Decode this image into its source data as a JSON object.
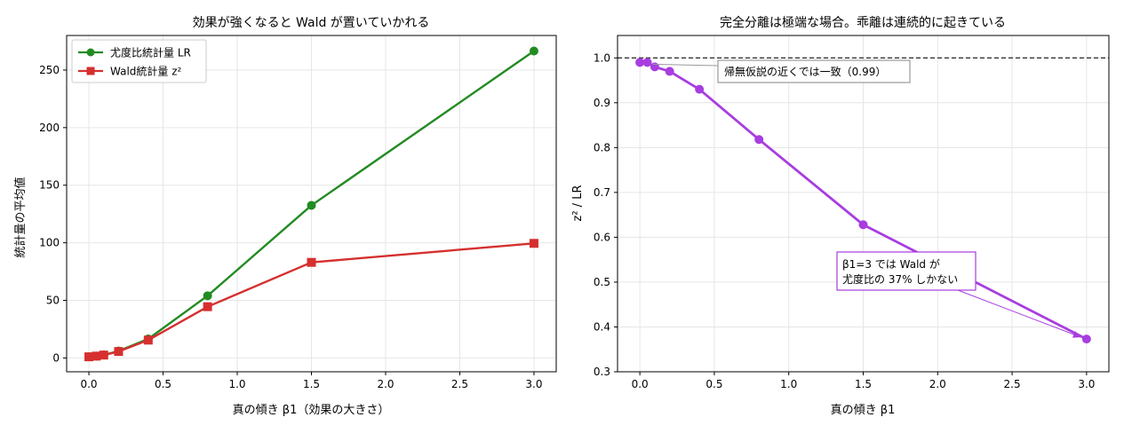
{
  "chart_data": [
    {
      "type": "line",
      "title": "効果が強くなると Wald が置いていかれる",
      "xlabel": "真の傾き β1（効果の大きさ）",
      "ylabel": "統計量の平均値",
      "xlim": [
        -0.15,
        3.15
      ],
      "ylim": [
        -12,
        280
      ],
      "xticks": [
        0.0,
        0.5,
        1.0,
        1.5,
        2.0,
        2.5,
        3.0
      ],
      "xtick_labels": [
        "0.0",
        "0.5",
        "1.0",
        "1.5",
        "2.0",
        "2.5",
        "3.0"
      ],
      "yticks": [
        0,
        50,
        100,
        150,
        200,
        250
      ],
      "ytick_labels": [
        "0",
        "50",
        "100",
        "150",
        "200",
        "250"
      ],
      "grid": true,
      "legend": "top-left",
      "series": [
        {
          "name": "尤度比統計量 LR",
          "color": "#228b22",
          "marker": "circle",
          "x": [
            0.0,
            0.05,
            0.1,
            0.2,
            0.4,
            0.8,
            1.5,
            3.0
          ],
          "y": [
            1.0,
            1.6,
            2.6,
            6.0,
            16.5,
            54,
            132.5,
            266.5
          ]
        },
        {
          "name": "Wald統計量 z²",
          "color": "#d62f2f",
          "marker": "square",
          "x": [
            0.0,
            0.05,
            0.1,
            0.2,
            0.4,
            0.8,
            1.5,
            3.0
          ],
          "y": [
            1.0,
            1.6,
            2.5,
            5.6,
            15.5,
            44.5,
            83.0,
            99.5
          ]
        }
      ]
    },
    {
      "type": "line",
      "title": "完全分離は極端な場合。乖離は連続的に起きている",
      "xlabel": "真の傾き β1",
      "ylabel": "z² / LR",
      "xlim": [
        -0.15,
        3.15
      ],
      "ylim": [
        0.3,
        1.05
      ],
      "xticks": [
        0.0,
        0.5,
        1.0,
        1.5,
        2.0,
        2.5,
        3.0
      ],
      "xtick_labels": [
        "0.0",
        "0.5",
        "1.0",
        "1.5",
        "2.0",
        "2.5",
        "3.0"
      ],
      "yticks": [
        0.3,
        0.4,
        0.5,
        0.6,
        0.7,
        0.8,
        0.9,
        1.0
      ],
      "ytick_labels": [
        "0.3",
        "0.4",
        "0.5",
        "0.6",
        "0.7",
        "0.8",
        "0.9",
        "1.0"
      ],
      "grid": true,
      "reference_line_y": 1.0,
      "series": [
        {
          "color": "#a83de0",
          "marker": "circle",
          "x": [
            0.0,
            0.05,
            0.1,
            0.2,
            0.4,
            0.8,
            1.5,
            3.0
          ],
          "y": [
            0.99,
            0.99,
            0.98,
            0.97,
            0.93,
            0.818,
            0.628,
            0.373
          ]
        }
      ],
      "annotations": [
        {
          "text": "帰無仮説の近くでは一致（0.99）",
          "target_x": 0.05,
          "target_y": 0.99,
          "border": "#999999",
          "arrow": "#999999"
        },
        {
          "text_lines": [
            "β1=3 では Wald が",
            "尤度比の 37% しかない"
          ],
          "target_x": 3.0,
          "target_y": 0.373,
          "border": "#a83de0",
          "arrow": "#a83de0"
        }
      ]
    }
  ]
}
